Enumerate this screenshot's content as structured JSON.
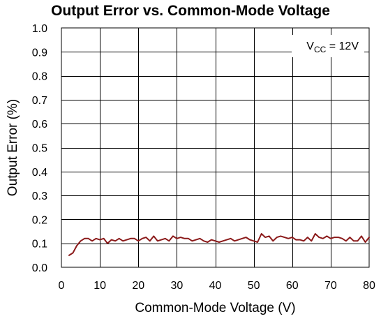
{
  "chart_data": {
    "type": "line",
    "title": "Output Error vs. Common-Mode Voltage",
    "xlabel": "Common-Mode Voltage (V)",
    "ylabel": "Output Error (%)",
    "xlim": [
      0,
      80
    ],
    "ylim": [
      0,
      1.0
    ],
    "xticks": [
      "0",
      "10",
      "20",
      "30",
      "40",
      "50",
      "60",
      "70",
      "80"
    ],
    "yticks": [
      "0.0",
      "0.1",
      "0.2",
      "0.3",
      "0.4",
      "0.5",
      "0.6",
      "0.7",
      "0.8",
      "0.9",
      "1.0"
    ],
    "grid": true,
    "annotation": {
      "prefix": "V",
      "subscript": "CC",
      "suffix": " = 12V",
      "placement": "top-right"
    },
    "series": [
      {
        "color": "#8B1A1A",
        "x": [
          2,
          3,
          4,
          5,
          6,
          7,
          8,
          9,
          10,
          11,
          12,
          13,
          14,
          15,
          16,
          17,
          18,
          19,
          20,
          21,
          22,
          23,
          24,
          25,
          26,
          27,
          28,
          29,
          30,
          31,
          32,
          33,
          34,
          35,
          36,
          37,
          38,
          39,
          40,
          41,
          42,
          43,
          44,
          45,
          46,
          47,
          48,
          49,
          50,
          51,
          52,
          53,
          54,
          55,
          56,
          57,
          58,
          59,
          60,
          61,
          62,
          63,
          64,
          65,
          66,
          67,
          68,
          69,
          70,
          71,
          72,
          73,
          74,
          75,
          76,
          77,
          78,
          79,
          80
        ],
        "values": [
          0.05,
          0.06,
          0.09,
          0.11,
          0.12,
          0.12,
          0.11,
          0.12,
          0.115,
          0.12,
          0.1,
          0.115,
          0.11,
          0.12,
          0.11,
          0.115,
          0.12,
          0.12,
          0.11,
          0.12,
          0.125,
          0.11,
          0.13,
          0.11,
          0.115,
          0.12,
          0.11,
          0.13,
          0.12,
          0.125,
          0.12,
          0.12,
          0.11,
          0.115,
          0.12,
          0.11,
          0.105,
          0.115,
          0.11,
          0.105,
          0.11,
          0.115,
          0.12,
          0.11,
          0.115,
          0.12,
          0.125,
          0.115,
          0.11,
          0.105,
          0.14,
          0.125,
          0.13,
          0.11,
          0.125,
          0.13,
          0.125,
          0.12,
          0.125,
          0.115,
          0.115,
          0.11,
          0.125,
          0.11,
          0.14,
          0.125,
          0.12,
          0.13,
          0.12,
          0.125,
          0.125,
          0.12,
          0.11,
          0.125,
          0.11,
          0.11,
          0.13,
          0.105,
          0.125
        ]
      }
    ]
  }
}
